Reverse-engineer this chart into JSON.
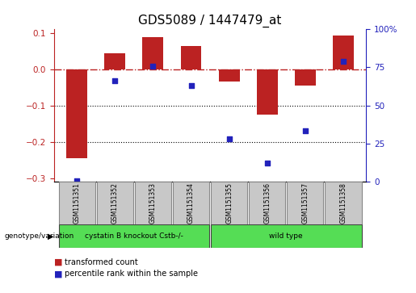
{
  "title": "GDS5089 / 1447479_at",
  "samples": [
    "GSM1151351",
    "GSM1151352",
    "GSM1151353",
    "GSM1151354",
    "GSM1151355",
    "GSM1151356",
    "GSM1151357",
    "GSM1151358"
  ],
  "bar_values": [
    -0.245,
    0.043,
    0.088,
    0.065,
    -0.035,
    -0.125,
    -0.045,
    0.092
  ],
  "dot_values": [
    0.5,
    66.5,
    76.0,
    63.0,
    28.0,
    12.0,
    33.5,
    79.0
  ],
  "group1_samples": 4,
  "group2_samples": 4,
  "ylim_left": [
    -0.31,
    0.11
  ],
  "ylim_right": [
    0,
    100
  ],
  "yticks_left": [
    0.1,
    0.0,
    -0.1,
    -0.2,
    -0.3
  ],
  "yticks_right": [
    100,
    75,
    50,
    25,
    0
  ],
  "bar_color": "#bb2222",
  "dot_color": "#2222bb",
  "dotted_lines": [
    -0.1,
    -0.2
  ],
  "legend_transformed": "transformed count",
  "legend_percentile": "percentile rank within the sample",
  "genotype_label": "genotype/variation",
  "group1_label": "cystatin B knockout Cstb-/-",
  "group2_label": "wild type",
  "title_fontsize": 11,
  "axis_fontsize": 8,
  "tick_fontsize": 7.5,
  "green_color": "#55dd55",
  "gray_color": "#c8c8c8",
  "box_edge_color": "#888888"
}
